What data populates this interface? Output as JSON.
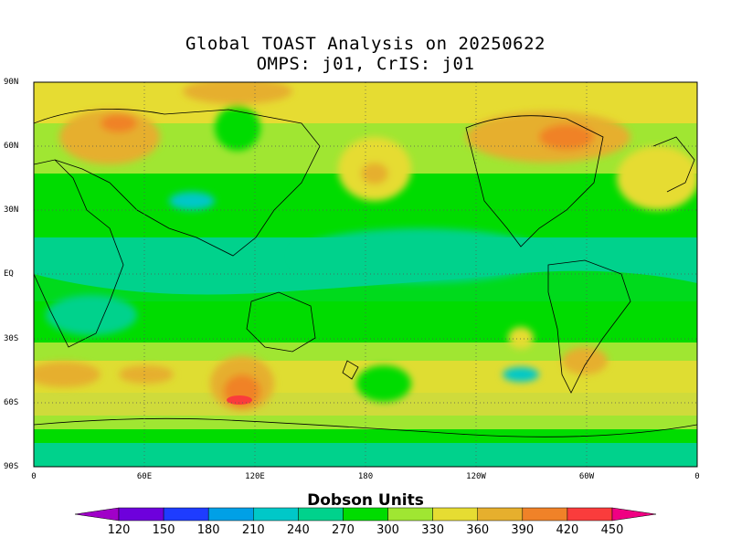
{
  "header": {
    "title_line1": "Global TOAST Analysis on 20250622",
    "title_line2": "OMPS: j01, CrIS: j01"
  },
  "axes": {
    "lat_labels": [
      "90N",
      "60N",
      "30N",
      "EQ",
      "30S",
      "60S",
      "90S"
    ],
    "lon_labels": [
      "0",
      "60E",
      "120E",
      "180",
      "120W",
      "60W",
      "0"
    ]
  },
  "colorbar": {
    "title": "Dobson Units",
    "ticks": [
      "120",
      "150",
      "180",
      "210",
      "240",
      "270",
      "300",
      "330",
      "360",
      "390",
      "420",
      "450"
    ],
    "colors": [
      "#a000c8",
      "#6e00dc",
      "#1e3cff",
      "#00a0e6",
      "#00c8c8",
      "#00d28c",
      "#00dc00",
      "#a0e632",
      "#e6dc32",
      "#e6af2d",
      "#f08228",
      "#fa3c3c",
      "#f00082"
    ]
  }
}
